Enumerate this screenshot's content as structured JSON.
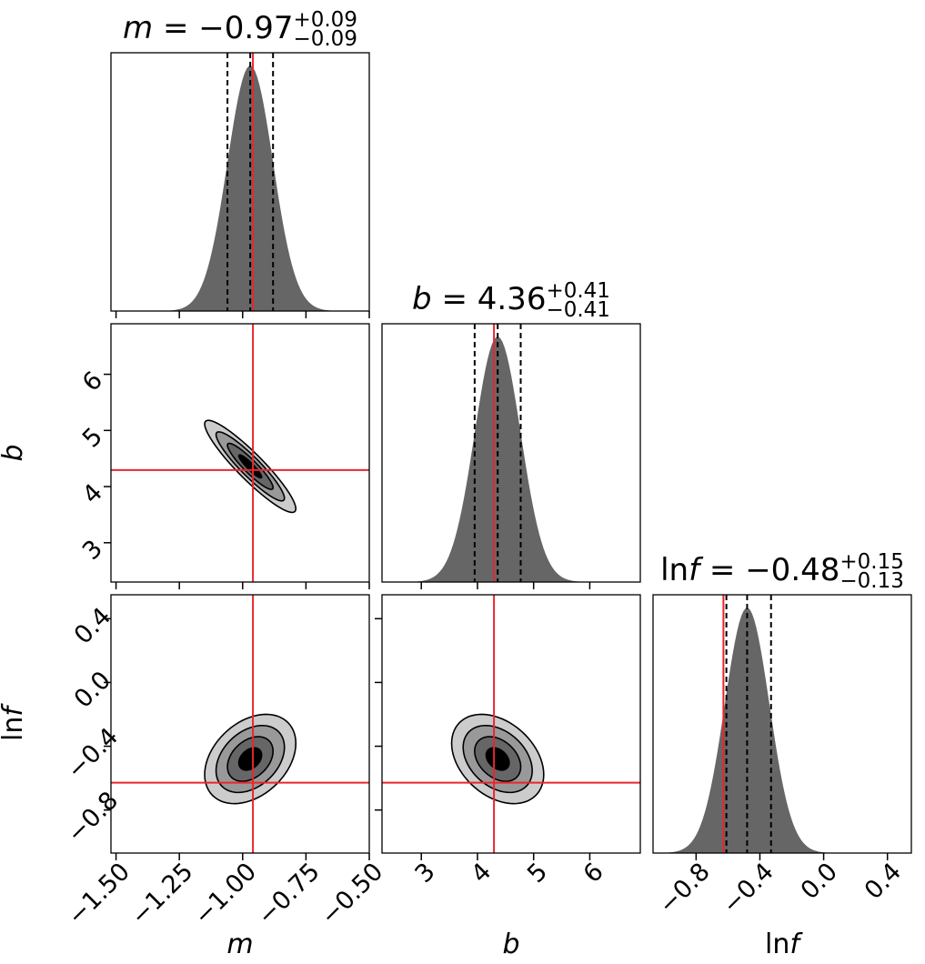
{
  "chart_data": {
    "type": "corner",
    "colors": {
      "truth": "#e8262d",
      "histogram": "#666666",
      "quantile": "#000000",
      "contour_levels": [
        "#cccccc",
        "#999999",
        "#666666",
        "#000000"
      ]
    },
    "parameters": [
      {
        "symbol": "m",
        "label_main": "m",
        "label_suffix": "",
        "title_lhs": "m",
        "title_value": " = −0.97",
        "title_plus": "+0.09",
        "title_minus": "−0.09",
        "median": -0.97,
        "err_plus": 0.09,
        "err_minus": 0.09,
        "truth": -0.9594,
        "range": [
          -1.52,
          -0.5
        ],
        "ticks": [
          -1.5,
          -1.25,
          -1.0,
          -0.75,
          -0.5
        ],
        "tick_labels": [
          "−1.50",
          "−1.25",
          "−1.00",
          "−0.75",
          "−0.50"
        ]
      },
      {
        "symbol": "b",
        "label_main": "b",
        "label_suffix": "",
        "title_lhs": "b",
        "title_value": " = 4.36",
        "title_plus": "+0.41",
        "title_minus": "−0.41",
        "median": 4.36,
        "err_plus": 0.41,
        "err_minus": 0.41,
        "truth": 4.294,
        "range": [
          2.3,
          6.9
        ],
        "ticks": [
          3,
          4,
          5,
          6
        ],
        "tick_labels": [
          "3",
          "4",
          "5",
          "6"
        ]
      },
      {
        "symbol": "lnf",
        "label_main": "ln",
        "label_suffix": "f",
        "title_lhs": "ln",
        "title_lhs_italic": "f",
        "title_value": " = −0.48",
        "title_plus": "+0.15",
        "title_minus": "−0.13",
        "median": -0.48,
        "err_plus": 0.15,
        "err_minus": 0.13,
        "truth": -0.6286,
        "range": [
          -1.07,
          0.55
        ],
        "ticks": [
          -0.8,
          -0.4,
          0.0,
          0.4
        ],
        "tick_labels": [
          "−0.8",
          "−0.4",
          "0.0",
          "0.4"
        ]
      }
    ],
    "histograms": [
      {
        "param": "m",
        "center": -0.97,
        "sigma": 0.09
      },
      {
        "param": "b",
        "center": 4.36,
        "sigma": 0.41
      },
      {
        "param": "lnf",
        "center": -0.48,
        "sigma": 0.14
      }
    ],
    "contours_2d": [
      {
        "x": "m",
        "y": "b",
        "center": [
          -0.97,
          4.36
        ],
        "sigma": [
          0.09,
          0.41
        ],
        "correlation": -0.92
      },
      {
        "x": "m",
        "y": "lnf",
        "center": [
          -0.97,
          -0.48
        ],
        "sigma": [
          0.09,
          0.14
        ],
        "correlation": 0.35
      },
      {
        "x": "b",
        "y": "lnf",
        "center": [
          4.36,
          -0.48
        ],
        "sigma": [
          0.41,
          0.14
        ],
        "correlation": -0.35
      }
    ],
    "contour_levels_sigma": [
      0.5,
      1.0,
      1.5,
      2.0
    ]
  }
}
